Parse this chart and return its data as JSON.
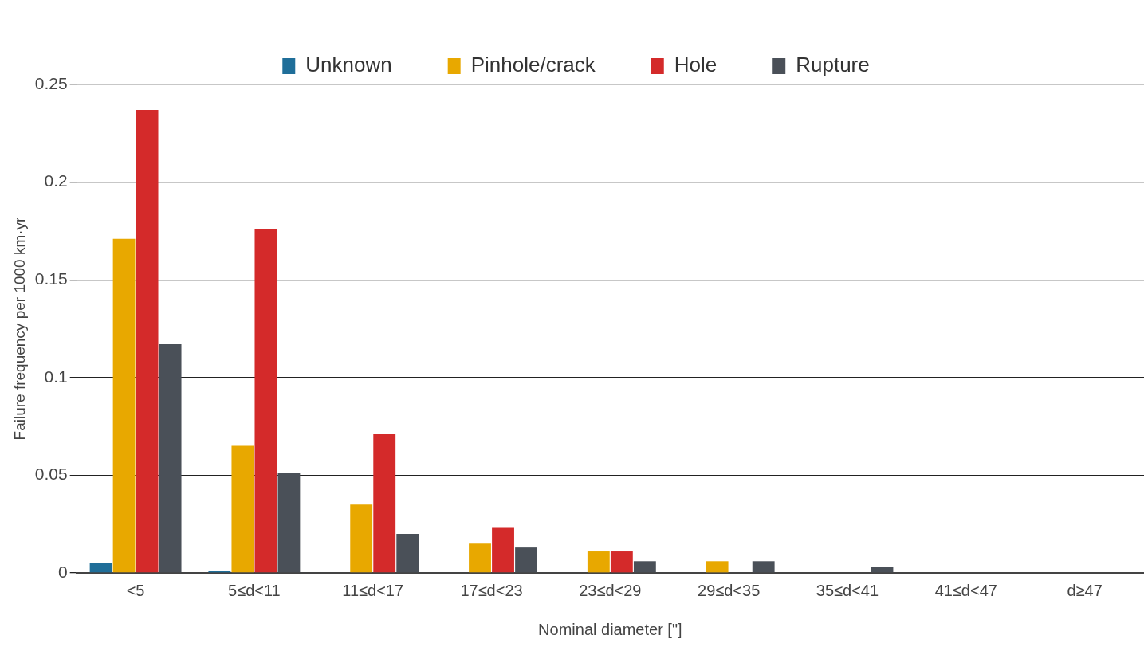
{
  "chart_data": {
    "type": "bar",
    "xlabel": "Nominal diameter [\"]",
    "ylabel": "Failure frequency per 1000 km·yr",
    "categories": [
      "<5",
      "5≤d<11",
      "11≤d<17",
      "17≤d<23",
      "23≤d<29",
      "29≤d<35",
      "35≤d<41",
      "41≤d<47",
      "d≥47"
    ],
    "series": [
      {
        "name": "Unknown",
        "color": "#1f6e99",
        "values": [
          0.005,
          0.001,
          0,
          0,
          0,
          0,
          0,
          0,
          0
        ]
      },
      {
        "name": "Pinhole/crack",
        "color": "#e8a800",
        "values": [
          0.171,
          0.065,
          0.035,
          0.015,
          0.011,
          0.006,
          0,
          0,
          0
        ]
      },
      {
        "name": "Hole",
        "color": "#d42a2a",
        "values": [
          0.237,
          0.176,
          0.071,
          0.023,
          0.011,
          0,
          0,
          0,
          0
        ]
      },
      {
        "name": "Rupture",
        "color": "#4a5058",
        "values": [
          0.117,
          0.051,
          0.02,
          0.013,
          0.006,
          0.006,
          0.003,
          0,
          0
        ]
      }
    ],
    "ylim": [
      0,
      0.25
    ],
    "yticks": [
      0,
      0.05,
      0.1,
      0.15,
      0.2,
      0.25
    ],
    "grid": "y",
    "legend": "top"
  }
}
